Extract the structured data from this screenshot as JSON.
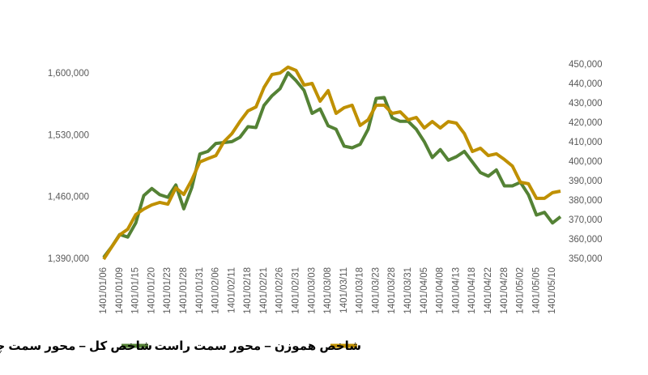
{
  "chart_data": {
    "type": "line",
    "categories": [
      "1401/01/06",
      null,
      "1401/01/09",
      null,
      "1401/01/15",
      null,
      "1401/01/20",
      null,
      "1401/01/23",
      null,
      "1401/01/28",
      null,
      "1401/01/31",
      null,
      "1401/02/06",
      null,
      "1401/02/11",
      null,
      "1401/02/18",
      null,
      "1401/02/21",
      null,
      "1401/02/26",
      null,
      "1401/02/31",
      null,
      "1401/03/03",
      null,
      "1401/03/08",
      null,
      "1401/03/11",
      null,
      "1401/03/18",
      null,
      "1401/03/23",
      null,
      "1401/03/28",
      null,
      "1401/03/31",
      null,
      "1401/04/05",
      null,
      "1401/04/08",
      null,
      "1401/04/13",
      null,
      "1401/04/18",
      null,
      "1401/04/22",
      null,
      "1401/04/28",
      null,
      "1401/05/02",
      null,
      "1401/05/05",
      null,
      "1401/05/10",
      null
    ],
    "series": [
      {
        "name": "شاخص کل – محور سمت چپ",
        "color": "#548235",
        "values": [
          1392000,
          1404000,
          1418000,
          1415000,
          1431000,
          1462000,
          1470000,
          1463000,
          1460000,
          1474000,
          1447000,
          1471000,
          1509000,
          1512000,
          1521000,
          1522000,
          1523000,
          1528000,
          1540000,
          1539000,
          1564000,
          1575000,
          1583000,
          1601000,
          1592000,
          1581000,
          1555000,
          1560000,
          1541000,
          1537000,
          1518000,
          1516000,
          1520000,
          1537000,
          1572000,
          1573000,
          1550000,
          1546000,
          1546000,
          1537000,
          1523000,
          1505000,
          1514000,
          1502000,
          1506000,
          1512000,
          1500000,
          1488000,
          1484000,
          1491000,
          1473000,
          1473000,
          1477000,
          1463000,
          1440000,
          1443000,
          1431000,
          1438000
        ]
      },
      {
        "name": "شاخص هموزن – محور سمت راست",
        "color": "#bf9000",
        "axis": "y2",
        "values": [
          350000,
          356300,
          362500,
          365400,
          372900,
          375800,
          377900,
          379200,
          378300,
          386700,
          383300,
          390800,
          400000,
          401700,
          403300,
          410400,
          414600,
          420800,
          426300,
          428300,
          438300,
          445000,
          445800,
          448800,
          447100,
          439600,
          440400,
          431300,
          436700,
          425000,
          427900,
          429200,
          418800,
          421700,
          429200,
          429200,
          425000,
          425800,
          421700,
          422900,
          417500,
          420800,
          417500,
          420800,
          420000,
          414600,
          405400,
          407100,
          403300,
          404200,
          401300,
          397900,
          389600,
          388800,
          381300,
          381300,
          384200,
          385000
        ]
      }
    ],
    "ylim": [
      1390000,
      1610000
    ],
    "yticks": [
      {
        "value": 1390000,
        "label": "1,390,000"
      },
      {
        "value": 1460000,
        "label": "1,460,000"
      },
      {
        "value": 1530000,
        "label": "1,530,000"
      },
      {
        "value": 1600000,
        "label": "1,600,000"
      }
    ],
    "y2lim": [
      350000,
      450000
    ],
    "y2ticks": [
      {
        "value": 350000,
        "label": "350,000"
      },
      {
        "value": 360000,
        "label": "360,000"
      },
      {
        "value": 370000,
        "label": "370,000"
      },
      {
        "value": 380000,
        "label": "380,000"
      },
      {
        "value": 390000,
        "label": "390,000"
      },
      {
        "value": 400000,
        "label": "400,000"
      },
      {
        "value": 410000,
        "label": "410,000"
      },
      {
        "value": 420000,
        "label": "420,000"
      },
      {
        "value": 430000,
        "label": "430,000"
      },
      {
        "value": 440000,
        "label": "440,000"
      },
      {
        "value": 450000,
        "label": "450,000"
      }
    ],
    "grid": false
  }
}
